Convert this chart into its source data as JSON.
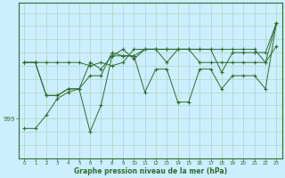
{
  "xlabel": "Graphe pression niveau de la mer (hPa)",
  "background_color": "#cceeff",
  "plot_bg_color": "#cceeff",
  "grid_color": "#b0d4c0",
  "line_color": "#2d6e2d",
  "marker": "+",
  "x_ticks": [
    0,
    1,
    2,
    3,
    4,
    5,
    6,
    7,
    8,
    9,
    10,
    11,
    12,
    13,
    14,
    15,
    16,
    17,
    18,
    19,
    20,
    21,
    22,
    23
  ],
  "y_label_val": 999,
  "series": [
    [
      997.5,
      997.5,
      999.5,
      1002.0,
      1003.0,
      1003.5,
      1007.5,
      1006.5,
      1008.5,
      1009.5,
      1008.0,
      1009.5,
      1009.5,
      1009.5,
      1009.5,
      1009.5,
      1009.5,
      1009.5,
      1006.0,
      1009.0,
      1009.0,
      1009.0,
      1009.0,
      1013.5
    ],
    [
      1007.5,
      1007.5,
      1007.5,
      1007.5,
      1007.5,
      1007.5,
      1007.0,
      1007.5,
      1007.0,
      1007.5,
      1009.5,
      1009.5,
      1009.5,
      1007.5,
      1009.5,
      1009.5,
      1007.5,
      1007.5,
      1007.5,
      1007.5,
      1007.5,
      1007.5,
      1007.5,
      1010.0
    ],
    [
      1007.5,
      1007.5,
      1002.5,
      1002.5,
      1003.5,
      1003.5,
      997.0,
      1001.0,
      1008.5,
      1008.5,
      1008.5,
      1003.0,
      1006.5,
      1006.5,
      1001.5,
      1001.5,
      1006.5,
      1006.5,
      1003.5,
      1005.5,
      1005.5,
      1005.5,
      1003.5,
      1013.5
    ],
    [
      1007.5,
      1007.5,
      1002.5,
      1002.5,
      1003.5,
      1003.5,
      1005.5,
      1005.5,
      1009.0,
      1008.5,
      1008.5,
      1009.5,
      1009.5,
      1009.5,
      1009.5,
      1009.5,
      1009.5,
      1009.5,
      1009.5,
      1009.5,
      1009.5,
      1009.5,
      1007.5,
      1013.5
    ]
  ],
  "ylim": [
    993.0,
    1016.5
  ],
  "xlim": [
    -0.5,
    23.5
  ]
}
